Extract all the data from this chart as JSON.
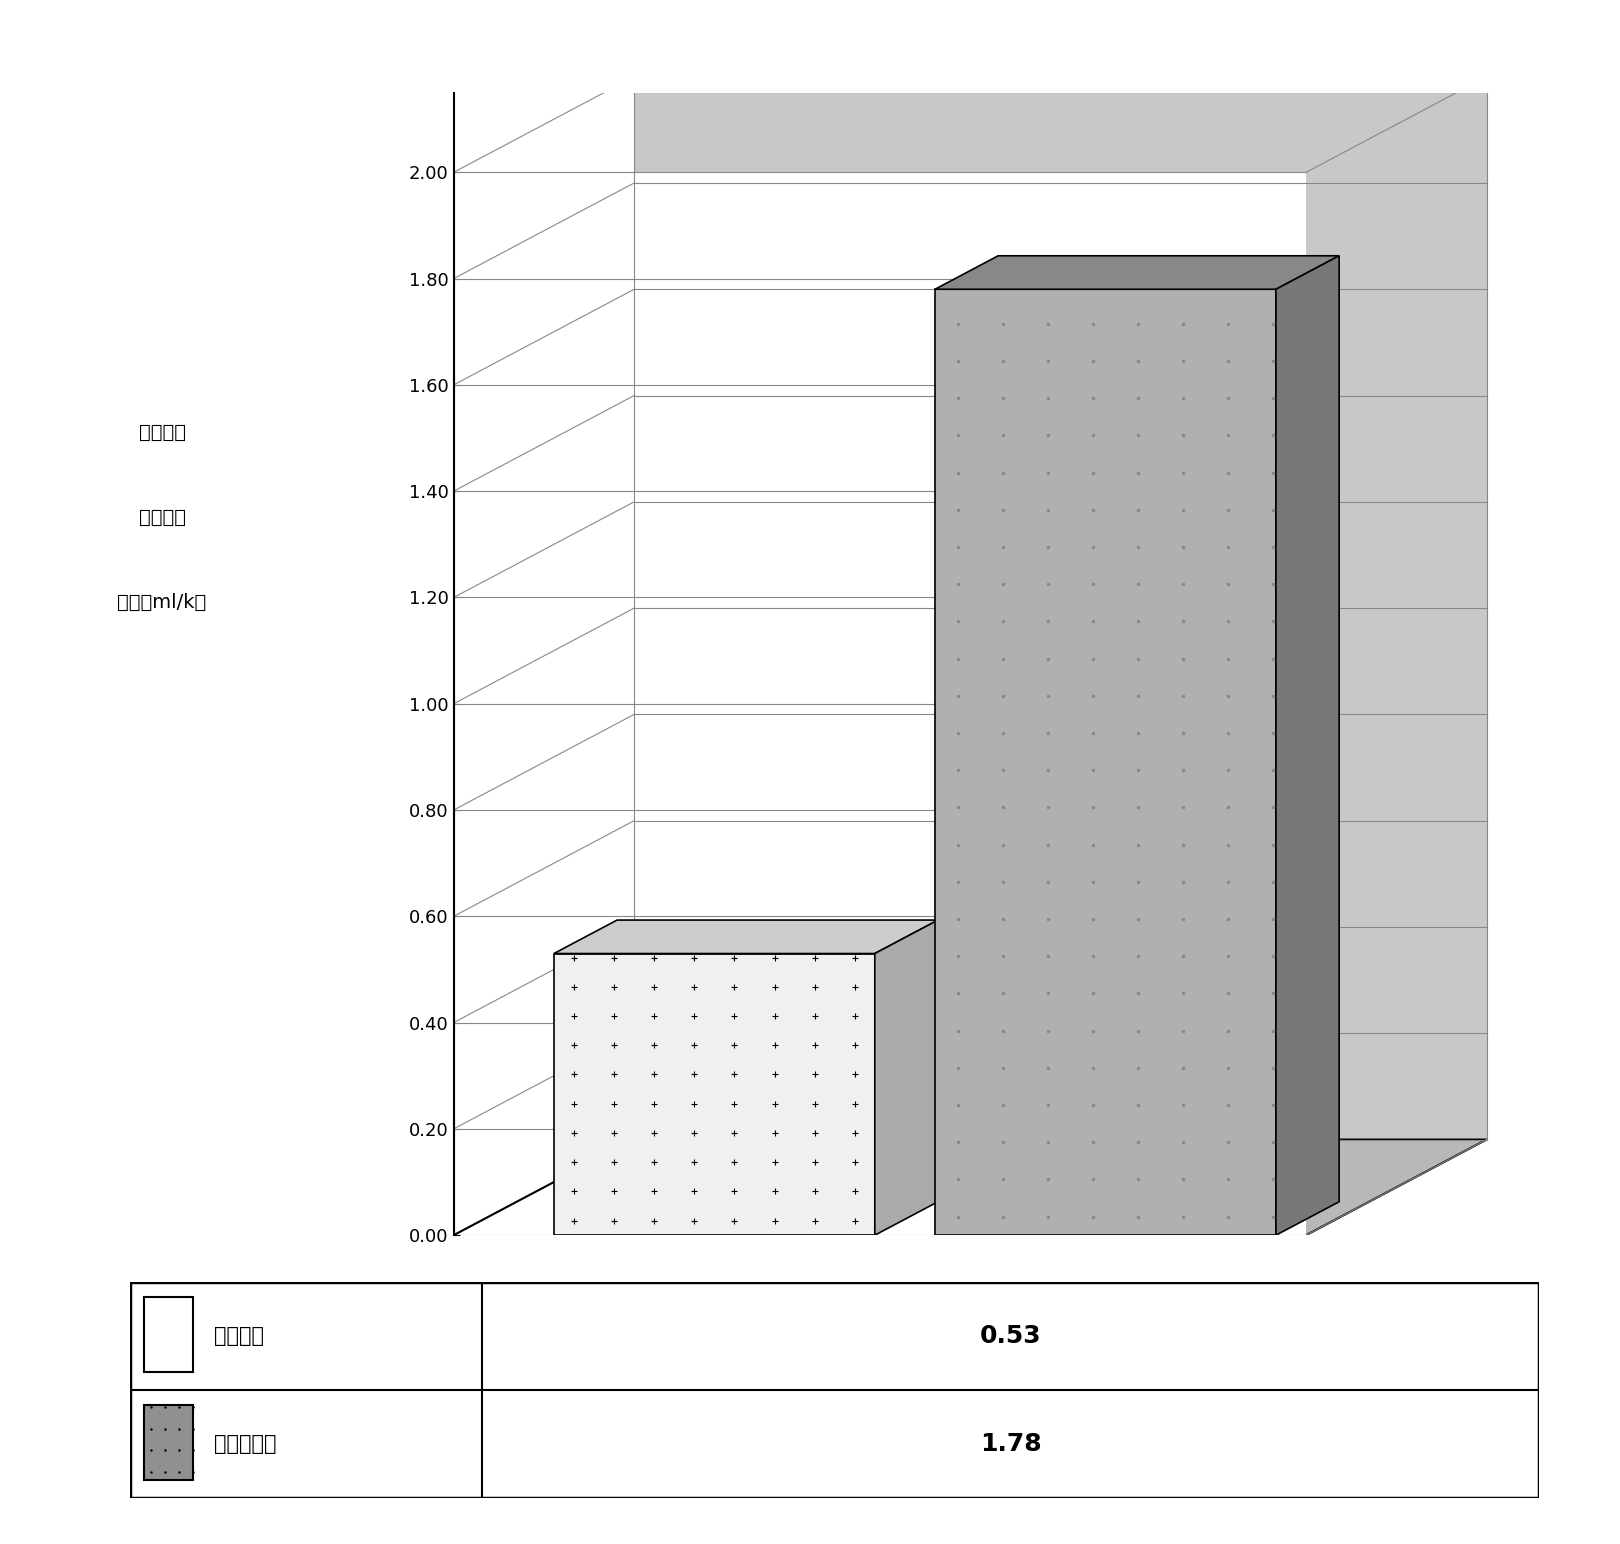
{
  "values": [
    0.53,
    1.78
  ],
  "ylabel_lines": [
    "单位能量",
    "消耗下的",
    "产能（ml/k）"
  ],
  "ylim": [
    0.0,
    2.0
  ],
  "yticks": [
    0.0,
    0.2,
    0.4,
    0.6,
    0.8,
    1.0,
    1.2,
    1.4,
    1.6,
    1.8,
    2.0
  ],
  "background_color": "#ffffff",
  "legend_label1": "传统制程",
  "legend_label2": "超音波制程",
  "legend_value1": "0.53",
  "legend_value2": "1.78"
}
